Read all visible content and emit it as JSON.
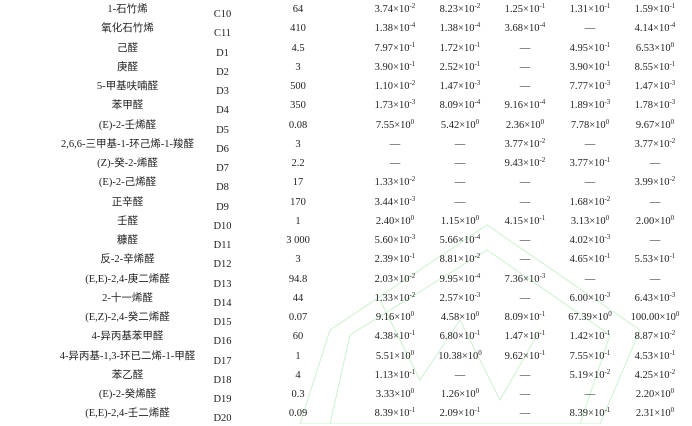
{
  "rows": [
    {
      "name": "1-石竹烯",
      "code": "C10",
      "threshold": "64",
      "values": [
        [
          "3.74",
          "-2"
        ],
        [
          "8.23",
          "-2"
        ],
        [
          "1.25",
          "-1"
        ],
        [
          "1.31",
          "-1"
        ],
        [
          "1.59",
          "-1"
        ]
      ]
    },
    {
      "name": "氧化石竹烯",
      "code": "C11",
      "threshold": "410",
      "values": [
        [
          "1.38",
          "-4"
        ],
        [
          "1.38",
          "-4"
        ],
        [
          "3.68",
          "-4"
        ],
        null,
        [
          "4.14",
          "-4"
        ]
      ]
    },
    {
      "name": "己醛",
      "code": "D1",
      "threshold": "4.5",
      "values": [
        [
          "7.97",
          "-1"
        ],
        [
          "1.72",
          "-1"
        ],
        null,
        [
          "4.95",
          "-1"
        ],
        [
          "6.53",
          "0"
        ]
      ]
    },
    {
      "name": "庚醛",
      "code": "D2",
      "threshold": "3",
      "values": [
        [
          "3.90",
          "-1"
        ],
        [
          "2.52",
          "-1"
        ],
        null,
        [
          "3.90",
          "-1"
        ],
        [
          "8.55",
          "-1"
        ]
      ]
    },
    {
      "name": "5-甲基呋喃醛",
      "code": "D3",
      "threshold": "500",
      "values": [
        [
          "1.10",
          "-2"
        ],
        [
          "1.47",
          "-3"
        ],
        null,
        [
          "7.77",
          "-3"
        ],
        [
          "1.47",
          "-3"
        ]
      ]
    },
    {
      "name": "苯甲醛",
      "code": "D4",
      "threshold": "350",
      "values": [
        [
          "1.73",
          "-3"
        ],
        [
          "8.09",
          "-4"
        ],
        [
          "9.16",
          "-4"
        ],
        [
          "1.89",
          "-3"
        ],
        [
          "1.78",
          "-3"
        ]
      ]
    },
    {
      "name": "(E)-2-壬烯醛",
      "code": "D5",
      "threshold": "0.08",
      "values": [
        [
          "7.55",
          "0"
        ],
        [
          "5.42",
          "0"
        ],
        [
          "2.36",
          "0"
        ],
        [
          "7.78",
          "0"
        ],
        [
          "9.67",
          "0"
        ]
      ]
    },
    {
      "name": "2,6,6-三甲基-1-环己烯-1-羧醛",
      "code": "D6",
      "threshold": "3",
      "values": [
        null,
        null,
        [
          "3.77",
          "-2"
        ],
        null,
        [
          "3.77",
          "-2"
        ]
      ]
    },
    {
      "name": "(Z)-癸-2-烯醛",
      "code": "D7",
      "threshold": "2.2",
      "values": [
        null,
        null,
        [
          "9.43",
          "-2"
        ],
        [
          "3.77",
          "-1"
        ],
        null
      ]
    },
    {
      "name": "(E)-2-己烯醛",
      "code": "D8",
      "threshold": "17",
      "values": [
        [
          "1.33",
          "-2"
        ],
        null,
        null,
        null,
        [
          "3.99",
          "-2"
        ]
      ]
    },
    {
      "name": "正辛醛",
      "code": "D9",
      "threshold": "170",
      "values": [
        [
          "3.44",
          "-3"
        ],
        null,
        null,
        [
          "1.68",
          "-2"
        ],
        null
      ]
    },
    {
      "name": "壬醛",
      "code": "D10",
      "threshold": "1",
      "values": [
        [
          "2.40",
          "0"
        ],
        [
          "1.15",
          "0"
        ],
        [
          "4.15",
          "-1"
        ],
        [
          "3.13",
          "0"
        ],
        [
          "2.00",
          "0"
        ]
      ]
    },
    {
      "name": "糠醛",
      "code": "D11",
      "threshold": "3 000",
      "values": [
        [
          "5.60",
          "-3"
        ],
        [
          "5.66",
          "-4"
        ],
        null,
        [
          "4.02",
          "-3"
        ],
        null
      ]
    },
    {
      "name": "反-2-辛烯醛",
      "code": "D12",
      "threshold": "3",
      "values": [
        [
          "2.39",
          "-1"
        ],
        [
          "8.81",
          "-2"
        ],
        null,
        [
          "4.65",
          "-1"
        ],
        [
          "5.53",
          "-1"
        ]
      ]
    },
    {
      "name": "(E,E)-2,4-庚二烯醛",
      "code": "D13",
      "threshold": "94.8",
      "values": [
        [
          "2.03",
          "-2"
        ],
        [
          "9.95",
          "-4"
        ],
        [
          "7.36",
          "-3"
        ],
        null,
        null
      ]
    },
    {
      "name": "2-十一烯醛",
      "code": "D14",
      "threshold": "44",
      "values": [
        [
          "1.33",
          "-2"
        ],
        [
          "2.57",
          "-3"
        ],
        null,
        [
          "6.00",
          "-3"
        ],
        [
          "6.43",
          "-3"
        ]
      ]
    },
    {
      "name": "(E,Z)-2,4-癸二烯醛",
      "code": "D15",
      "threshold": "0.07",
      "values": [
        [
          "9.16",
          "0"
        ],
        [
          "4.58",
          "0"
        ],
        [
          "8.09",
          "-1"
        ],
        [
          "67.39",
          "0"
        ],
        [
          "100.00",
          "0"
        ]
      ]
    },
    {
      "name": "4-异丙基苯甲醛",
      "code": "D16",
      "threshold": "60",
      "values": [
        [
          "4.38",
          "-1"
        ],
        [
          "6.80",
          "-1"
        ],
        [
          "1.47",
          "-1"
        ],
        [
          "1.42",
          "-1"
        ],
        [
          "8.87",
          "-2"
        ]
      ]
    },
    {
      "name": "4-异丙基-1,3-环已二烯-1-甲醛",
      "code": "D17",
      "threshold": "1",
      "values": [
        [
          "5.51",
          "0"
        ],
        [
          "10.38",
          "0"
        ],
        [
          "9.62",
          "-1"
        ],
        [
          "7.55",
          "-1"
        ],
        [
          "4.53",
          "-1"
        ]
      ]
    },
    {
      "name": "苯乙醛",
      "code": "D18",
      "threshold": "4",
      "values": [
        [
          "1.13",
          "-1"
        ],
        null,
        null,
        [
          "5.19",
          "-2"
        ],
        [
          "4.25",
          "-2"
        ]
      ]
    },
    {
      "name": "(E)-2-癸烯醛",
      "code": "D19",
      "threshold": "0.3",
      "values": [
        [
          "3.33",
          "0"
        ],
        [
          "1.26",
          "0"
        ],
        null,
        null,
        [
          "2.20",
          "0"
        ]
      ]
    },
    {
      "name": "(E,E)-2,4-壬二烯醛",
      "code": "D20",
      "threshold": "0.09",
      "values": [
        [
          "8.39",
          "-1"
        ],
        [
          "2.09",
          "-1"
        ],
        null,
        [
          "8.39",
          "-1"
        ],
        [
          "2.31",
          "0"
        ]
      ]
    }
  ],
  "symbols": {
    "dash": "—",
    "times": "×10"
  },
  "colors": {
    "text": "#222222",
    "watermark": "#c8f0c8"
  }
}
